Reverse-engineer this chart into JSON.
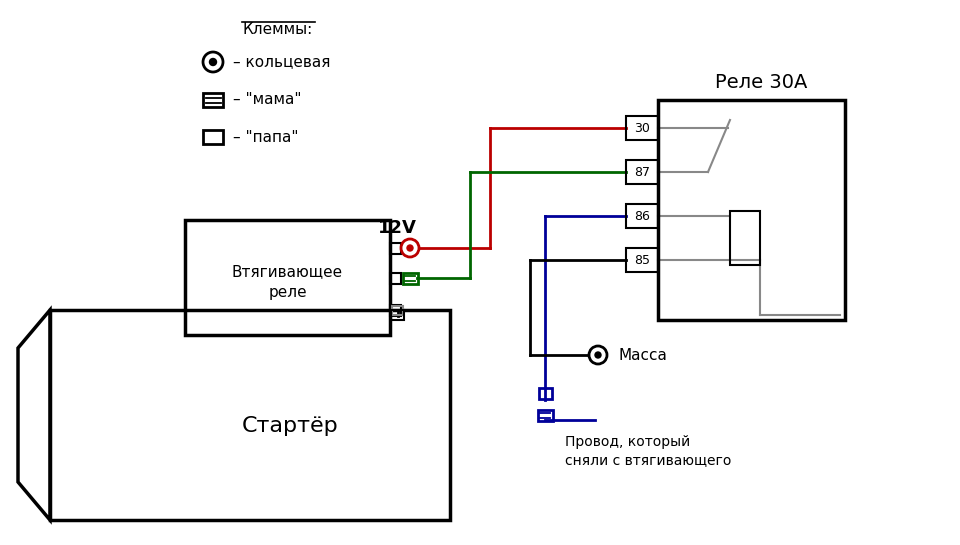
{
  "bg_color": "#ffffff",
  "legend_title": "Клеммы:",
  "legend_ring_label": "– кольцевая",
  "legend_mama_label": "– \"мама\"",
  "legend_papa_label": "– \"папа\"",
  "relay_title": "Реле 30А",
  "relay_pins": [
    "30",
    "87",
    "86",
    "85"
  ],
  "starter_label": "Стартёр",
  "solenoid_label": "Втягивающее\nреле",
  "voltage_label": "12V",
  "massa_label": "Масса",
  "wire_label_line1": "Провод, который",
  "wire_label_line2": "сняли с втягивающего",
  "colors": {
    "red": "#bb0000",
    "green": "#006600",
    "blue": "#000099",
    "black": "#000000",
    "gray": "#888888"
  }
}
